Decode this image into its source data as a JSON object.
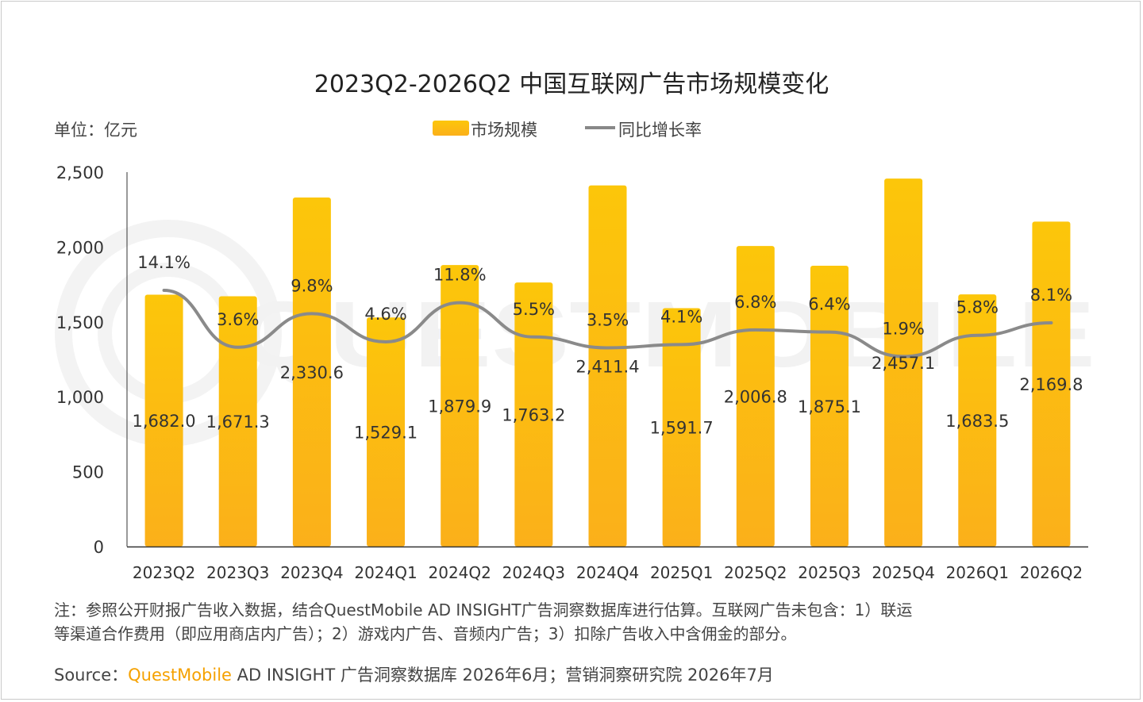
{
  "chart_data": {
    "type": "bar",
    "title": "2023Q2-2026Q2 中国互联网广告市场规模变化",
    "unit_label": "单位：亿元",
    "categories": [
      "2023Q2",
      "2023Q3",
      "2023Q4",
      "2024Q1",
      "2024Q2",
      "2024Q3",
      "2024Q4",
      "2025Q1",
      "2025Q2",
      "2025Q3",
      "2025Q4",
      "2026Q1",
      "2026Q2"
    ],
    "series": [
      {
        "name": "市场规模",
        "type": "bar",
        "color": "#fbbf0c",
        "values": [
          1682.0,
          1671.3,
          2330.6,
          1529.1,
          1879.9,
          1763.2,
          2411.4,
          1591.7,
          2006.8,
          1875.1,
          2457.1,
          1683.5,
          2169.8
        ],
        "labels": [
          "1,682.0",
          "1,671.3",
          "2,330.6",
          "1,529.1",
          "1,879.9",
          "1,763.2",
          "2,411.4",
          "1,591.7",
          "2,006.8",
          "1,875.1",
          "2,457.1",
          "1,683.5",
          "2,169.8"
        ]
      },
      {
        "name": "同比增长率",
        "type": "line",
        "color": "#888888",
        "values": [
          14.1,
          3.6,
          9.8,
          4.6,
          11.8,
          5.5,
          3.5,
          4.1,
          6.8,
          6.4,
          1.9,
          5.8,
          8.1
        ],
        "labels": [
          "14.1%",
          "3.6%",
          "9.8%",
          "4.6%",
          "11.8%",
          "5.5%",
          "3.5%",
          "4.1%",
          "6.8%",
          "6.4%",
          "1.9%",
          "5.8%",
          "8.1%"
        ]
      }
    ],
    "y_ticks": [
      "0",
      "500",
      "1,000",
      "1,500",
      "2,000",
      "2,500"
    ],
    "ylim": [
      0,
      2500
    ],
    "legend_position": "top-center",
    "grid": false
  },
  "notes": {
    "line1": "注：参照公开财报广告收入数据，结合QuestMobile AD INSIGHT广告洞察数据库进行估算。互联网广告未包含：1）联运",
    "line2": "等渠道合作费用（即应用商店内广告）；2）游戏内广告、音频内广告；3）扣除广告收入中含佣金的部分。"
  },
  "source": {
    "prefix": "Source：",
    "brand": "QuestMobile",
    "rest": " AD INSIGHT 广告洞察数据库 2026年6月；营销洞察研究院 2026年7月"
  },
  "watermark": "QUESTMOBILE"
}
